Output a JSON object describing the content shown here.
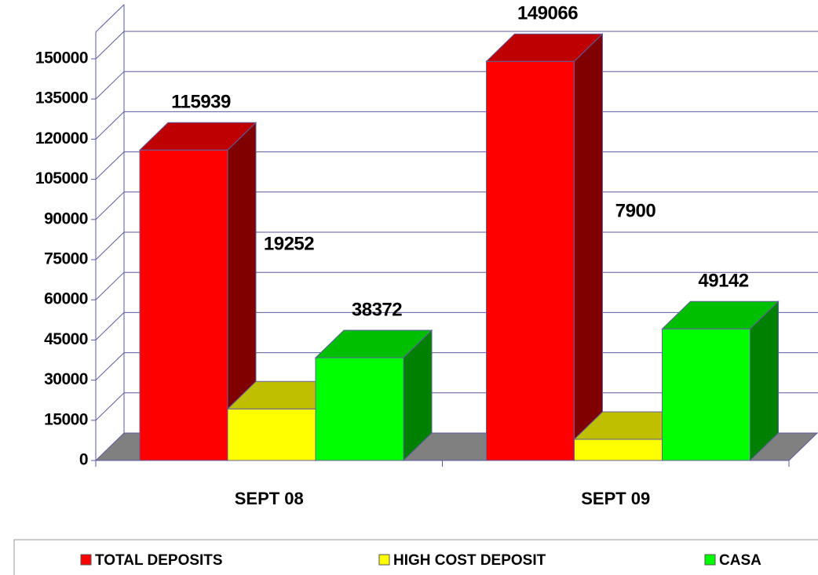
{
  "chart_data": {
    "type": "bar3d",
    "categories": [
      "SEPT 08",
      "SEPT 09"
    ],
    "series": [
      {
        "name": "TOTAL DEPOSITS",
        "color": "#ff0000",
        "values": [
          115939,
          149066
        ]
      },
      {
        "name": "HIGH COST DEPOSIT",
        "color": "#ffff00",
        "values": [
          19252,
          7900
        ]
      },
      {
        "name": "CASA",
        "color": "#00ff00",
        "values": [
          38372,
          49142
        ]
      }
    ],
    "ylim": [
      0,
      160000
    ],
    "yticks": [
      0,
      15000,
      30000,
      45000,
      60000,
      75000,
      90000,
      105000,
      120000,
      135000,
      150000
    ],
    "grid": true,
    "legend": "bottom"
  }
}
